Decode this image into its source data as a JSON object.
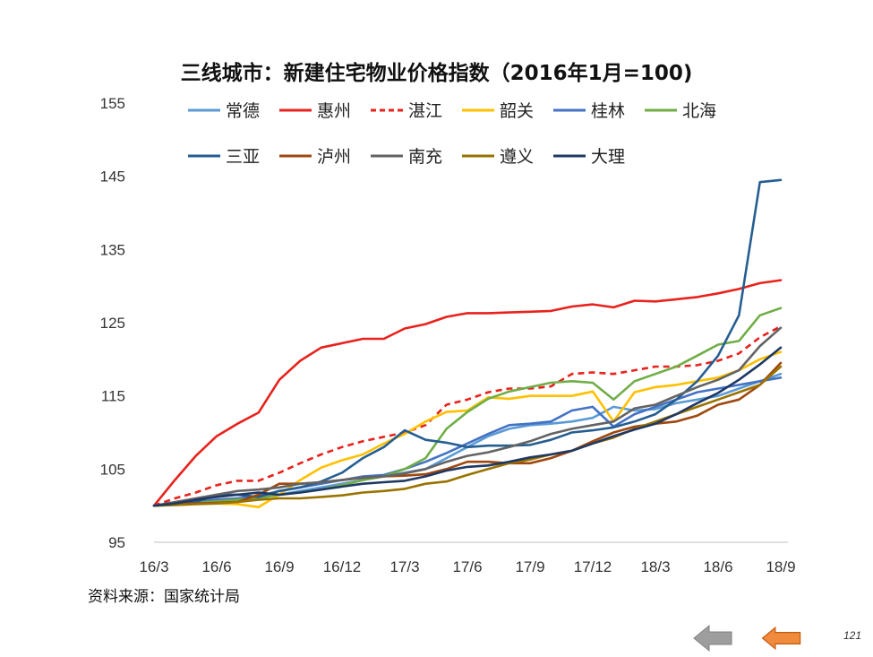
{
  "page": {
    "source_note": "资料来源：国家统计局",
    "page_number": "121",
    "nav": {
      "prev_icon": "arrow-left-gray-icon",
      "next_icon": "arrow-left-orange-icon",
      "prev_color": "#9e9e9e",
      "next_color": "#f08a3c"
    }
  },
  "chart_data": {
    "type": "line",
    "title": "三线城市：新建住宅物业价格指数（2016年1月=100)",
    "xlabel": "",
    "ylabel": "",
    "ylim": [
      95,
      155
    ],
    "yticks": [
      95,
      105,
      115,
      125,
      135,
      145,
      155
    ],
    "x_tick_labels": [
      "16/3",
      "16/6",
      "16/9",
      "16/12",
      "17/3",
      "17/6",
      "17/9",
      "17/12",
      "18/3",
      "18/6",
      "18/9"
    ],
    "x_start": "2016-03",
    "x": [
      "2016-03",
      "2016-04",
      "2016-05",
      "2016-06",
      "2016-07",
      "2016-08",
      "2016-09",
      "2016-10",
      "2016-11",
      "2016-12",
      "2017-01",
      "2017-02",
      "2017-03",
      "2017-04",
      "2017-05",
      "2017-06",
      "2017-07",
      "2017-08",
      "2017-09",
      "2017-10",
      "2017-11",
      "2017-12",
      "2018-01",
      "2018-02",
      "2018-03",
      "2018-04",
      "2018-05",
      "2018-06",
      "2018-07",
      "2018-08",
      "2018-09"
    ],
    "grid": false,
    "legend_position": "top",
    "series": [
      {
        "name": "常德",
        "color": "#5b9bd5",
        "dash": false,
        "values": [
          100,
          100.3,
          100.5,
          100.8,
          101,
          101.2,
          101.5,
          102,
          102.5,
          103,
          103.5,
          104,
          104.5,
          105,
          106.5,
          108,
          109.5,
          110.5,
          111,
          111.2,
          111.5,
          112,
          113.5,
          113,
          113.2,
          114,
          114.5,
          115,
          116,
          117,
          118
        ]
      },
      {
        "name": "惠州",
        "color": "#e8221c",
        "dash": false,
        "values": [
          100,
          103.5,
          106.8,
          109.5,
          111.2,
          112.7,
          117.2,
          119.8,
          121.6,
          122.2,
          122.8,
          122.8,
          124.2,
          124.8,
          125.8,
          126.3,
          126.3,
          126.4,
          126.5,
          126.6,
          127.2,
          127.5,
          127.1,
          128,
          127.9,
          128.2,
          128.5,
          129,
          129.6,
          130.4,
          130.8
        ]
      },
      {
        "name": "湛江",
        "color": "#e8221c",
        "dash": true,
        "values": [
          100,
          101,
          101.8,
          102.8,
          103.4,
          103.4,
          104.5,
          105.8,
          107,
          108,
          108.8,
          109.4,
          110,
          111,
          113.8,
          114.5,
          115.5,
          116,
          116,
          116.3,
          118,
          118.2,
          118,
          118.5,
          119,
          119,
          119.2,
          119.8,
          120.8,
          123,
          124.5
        ]
      },
      {
        "name": "韶关",
        "color": "#ffc000",
        "dash": false,
        "values": [
          100,
          100.1,
          100.2,
          100.3,
          100.2,
          99.8,
          101.5,
          103.5,
          105.2,
          106.2,
          107,
          108.5,
          109.8,
          111.5,
          112.8,
          113,
          114.8,
          114.6,
          115,
          115,
          115,
          115.6,
          111.5,
          115.5,
          116.2,
          116.5,
          117,
          117.5,
          118.5,
          120,
          121
        ]
      },
      {
        "name": "桂林",
        "color": "#4472c4",
        "dash": false,
        "values": [
          100,
          100.3,
          100.5,
          100.8,
          101,
          101.3,
          102,
          102.5,
          103,
          103.5,
          104,
          104.2,
          105,
          106,
          107.2,
          108.5,
          109.8,
          111,
          111.2,
          111.5,
          113,
          113.5,
          110.8,
          112.5,
          113.5,
          114.5,
          115.5,
          116,
          116.5,
          117,
          117.5
        ]
      },
      {
        "name": "北海",
        "color": "#70ad47",
        "dash": false,
        "values": [
          100,
          100.2,
          100.4,
          100.6,
          100.8,
          101,
          101.5,
          101.8,
          102.2,
          102.8,
          103.5,
          104,
          105,
          106.5,
          110.5,
          112.8,
          114.6,
          115.6,
          116.2,
          116.8,
          117,
          116.8,
          114.5,
          117,
          118,
          119,
          120.5,
          122,
          122.5,
          126,
          127
        ]
      },
      {
        "name": "三亚",
        "color": "#255e91",
        "dash": false,
        "values": [
          100,
          100.2,
          100.5,
          101.5,
          101.5,
          101.2,
          102,
          102.5,
          103.3,
          104.5,
          106.5,
          108,
          110.3,
          109,
          108.6,
          108,
          108.2,
          108.2,
          108.3,
          109,
          110,
          110.3,
          110.7,
          111.5,
          112.5,
          114.5,
          117,
          120.5,
          126,
          144.2,
          144.5
        ]
      },
      {
        "name": "泸州",
        "color": "#9e480e",
        "dash": false,
        "values": [
          100,
          100.2,
          100.3,
          100.4,
          100.5,
          101.5,
          103,
          103,
          103.2,
          103.5,
          103.8,
          104,
          104.1,
          104.3,
          105,
          106,
          106,
          105.8,
          105.8,
          106.5,
          107.5,
          108.8,
          110,
          110.8,
          111.2,
          111.5,
          112.3,
          113.8,
          114.5,
          116.5,
          119.5
        ]
      },
      {
        "name": "南充",
        "color": "#636363",
        "dash": false,
        "values": [
          100,
          100.5,
          101,
          101.5,
          102,
          102.2,
          102.5,
          103,
          103.2,
          103.5,
          103.8,
          104,
          104.4,
          105,
          106,
          106.8,
          107.3,
          108,
          108.8,
          109.8,
          110.5,
          111,
          111.5,
          113.3,
          113.8,
          115,
          116.2,
          117.2,
          118.5,
          121.8,
          124.3
        ]
      },
      {
        "name": "遵义",
        "color": "#997300",
        "dash": false,
        "values": [
          100,
          100.1,
          100.2,
          100.3,
          100.5,
          100.8,
          101,
          101,
          101.2,
          101.4,
          101.8,
          102,
          102.3,
          103,
          103.3,
          104.2,
          105,
          105.8,
          106.3,
          107,
          107.5,
          108.5,
          109.3,
          110.5,
          111.5,
          112.5,
          113.5,
          114.5,
          115.5,
          116.5,
          119
        ]
      },
      {
        "name": "大理",
        "color": "#1f3864",
        "dash": false,
        "values": [
          100,
          100.3,
          100.8,
          101.2,
          101.5,
          101.8,
          101.5,
          101.8,
          102.2,
          102.6,
          103,
          103.2,
          103.4,
          104,
          104.8,
          105.3,
          105.5,
          106,
          106.6,
          107,
          107.5,
          108.5,
          109.5,
          110.4,
          111.2,
          112.5,
          114,
          115.4,
          117.2,
          119.3,
          121.6
        ]
      }
    ]
  }
}
